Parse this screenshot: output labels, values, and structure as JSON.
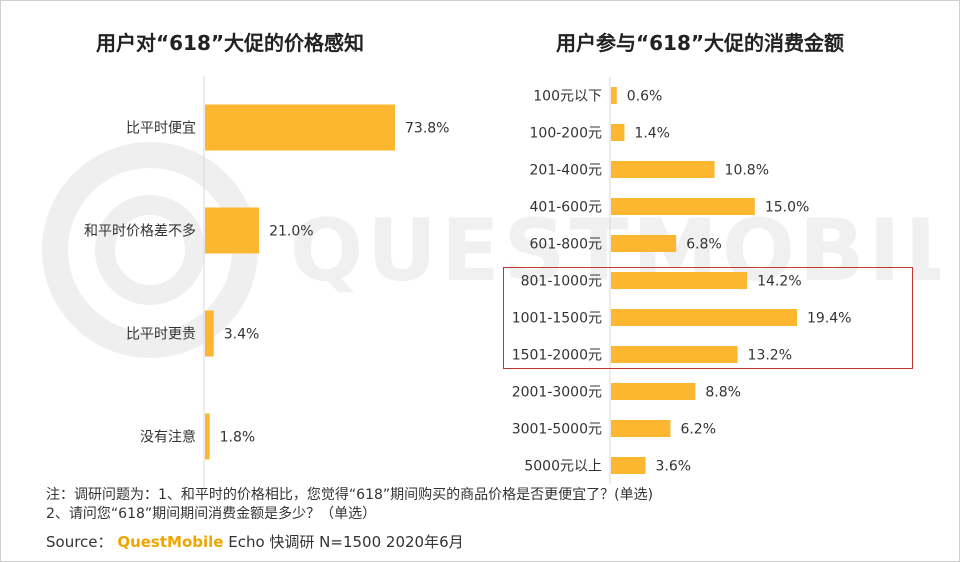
{
  "watermark": "QUESTMOBILE",
  "chart_data": [
    {
      "type": "bar",
      "orientation": "horizontal",
      "title": "用户对“618”大促的价格感知",
      "categories": [
        "比平时便宜",
        "和平时价格差不多",
        "比平时更贵",
        "没有注意"
      ],
      "values": [
        73.8,
        21.0,
        3.4,
        1.8
      ],
      "value_labels": [
        "73.8%",
        "21.0%",
        "3.4%",
        "1.8%"
      ],
      "unit": "%",
      "xlim": [
        0,
        100
      ],
      "grid": false,
      "color": "#FDB62F"
    },
    {
      "type": "bar",
      "orientation": "horizontal",
      "title": "用户参与“618”大促的消费金额",
      "categories": [
        "100元以下",
        "100-200元",
        "201-400元",
        "401-600元",
        "601-800元",
        "801-1000元",
        "1001-1500元",
        "1501-2000元",
        "2001-3000元",
        "3001-5000元",
        "5000元以上"
      ],
      "values": [
        0.6,
        1.4,
        10.8,
        15.0,
        6.8,
        14.2,
        19.4,
        13.2,
        8.8,
        6.2,
        3.6
      ],
      "value_labels": [
        "0.6%",
        "1.4%",
        "10.8%",
        "15.0%",
        "6.8%",
        "14.2%",
        "19.4%",
        "13.2%",
        "8.8%",
        "6.2%",
        "3.6%"
      ],
      "unit": "%",
      "xlim": [
        0,
        30
      ],
      "grid": false,
      "highlighted_categories": [
        "801-1000元",
        "1001-1500元",
        "1501-2000元"
      ],
      "highlight_color": "#C0392B",
      "color": "#FDB62F"
    }
  ],
  "notes": {
    "line1": "注：调研问题为：1、和平时的价格相比，您觉得“618”期间购买的商品价格是否更便宜了？(单选)",
    "line2": "2、请问您“618”期间期间消费金额是多少？（单选）"
  },
  "source": {
    "prefix": "Source：",
    "brand": "QuestMobile",
    "rest": "Echo 快调研 N=1500 2020年6月"
  }
}
